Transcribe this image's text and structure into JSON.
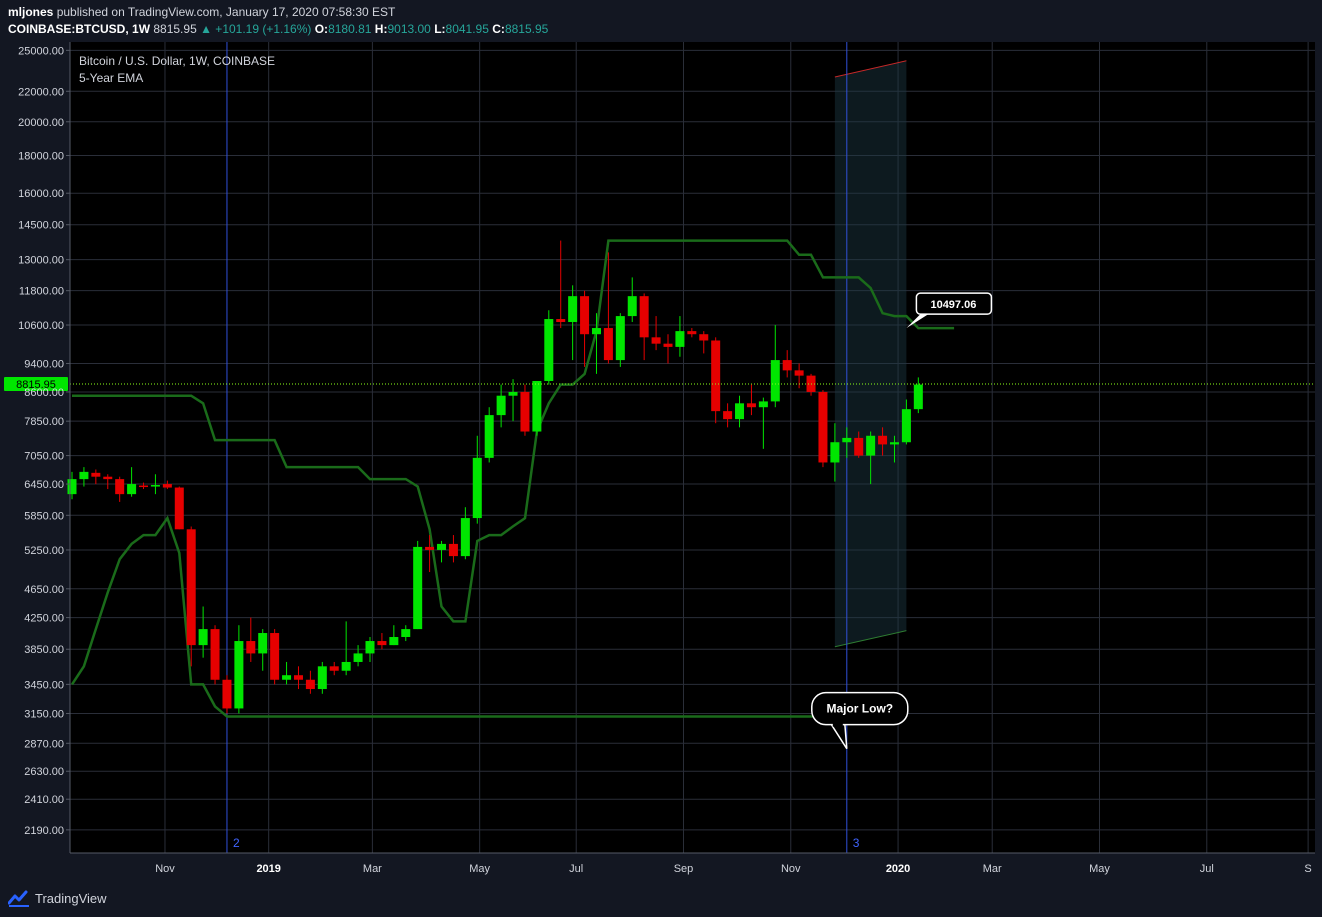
{
  "header": {
    "author": "mljones",
    "published_text": "published on TradingView.com, January 17, 2020 07:58:30 EST",
    "symbol": "COINBASE:BTCUSD,",
    "interval": "1W",
    "last": "8815.95",
    "change": "▲ +101.19 (+1.16%)",
    "o_label": "O:",
    "o_value": "8180.81",
    "h_label": "H:",
    "h_value": "9013.00",
    "l_label": "L:",
    "l_value": "8041.95",
    "c_label": "C:",
    "c_value": "8815.95"
  },
  "legend": {
    "title": "Bitcoin / U.S. Dollar, 1W, COINBASE",
    "indicator": "5-Year EMA"
  },
  "footer": {
    "brand": "TradingView",
    "logo_icon": "tradingview-logo-icon"
  },
  "colors": {
    "up": "#00e600",
    "down": "#e60000",
    "channel": "#1a6b1a",
    "vline": "#3150d8",
    "price_line": "#8cff1a",
    "grid": "#2a2e39",
    "background": "#000000"
  },
  "chart_data": {
    "type": "candlestick",
    "interval": "1W",
    "y_scale": "log",
    "ylim": [
      2050,
      25500
    ],
    "y_ticks": [
      "25000.00",
      "22000.00",
      "20000.00",
      "18000.00",
      "16000.00",
      "14500.00",
      "13000.00",
      "11800.00",
      "10600.00",
      "9400.00",
      "8600.00",
      "7850.00",
      "7050.00",
      "6450.00",
      "5850.00",
      "5250.00",
      "4650.00",
      "4250.00",
      "3850.00",
      "3450.00",
      "3150.00",
      "2870.00",
      "2630.00",
      "2410.00",
      "2190.00"
    ],
    "x_ticks": [
      "Nov",
      "2019",
      "Mar",
      "May",
      "Jul",
      "Sep",
      "Nov",
      "2020",
      "Mar",
      "May",
      "Jul",
      "S"
    ],
    "current_price_label": "8815.95",
    "candles": [
      {
        "o": 6250,
        "h": 6700,
        "l": 6150,
        "c": 6550
      },
      {
        "o": 6550,
        "h": 6800,
        "l": 6400,
        "c": 6700
      },
      {
        "o": 6680,
        "h": 6750,
        "l": 6450,
        "c": 6600
      },
      {
        "o": 6600,
        "h": 6650,
        "l": 6350,
        "c": 6550
      },
      {
        "o": 6550,
        "h": 6600,
        "l": 6100,
        "c": 6250
      },
      {
        "o": 6250,
        "h": 6800,
        "l": 6200,
        "c": 6450
      },
      {
        "o": 6420,
        "h": 6480,
        "l": 6350,
        "c": 6400
      },
      {
        "o": 6400,
        "h": 6650,
        "l": 6250,
        "c": 6430
      },
      {
        "o": 6450,
        "h": 6520,
        "l": 6350,
        "c": 6380
      },
      {
        "o": 6380,
        "h": 6400,
        "l": 5600,
        "c": 5600
      },
      {
        "o": 5600,
        "h": 5650,
        "l": 3650,
        "c": 3900
      },
      {
        "o": 3900,
        "h": 4400,
        "l": 3750,
        "c": 4100
      },
      {
        "o": 4100,
        "h": 4150,
        "l": 3450,
        "c": 3500
      },
      {
        "o": 3500,
        "h": 3550,
        "l": 3150,
        "c": 3200
      },
      {
        "o": 3200,
        "h": 4150,
        "l": 3150,
        "c": 3950
      },
      {
        "o": 3950,
        "h": 4250,
        "l": 3700,
        "c": 3800
      },
      {
        "o": 3800,
        "h": 4100,
        "l": 3600,
        "c": 4050
      },
      {
        "o": 4050,
        "h": 4100,
        "l": 3450,
        "c": 3500
      },
      {
        "o": 3500,
        "h": 3700,
        "l": 3450,
        "c": 3550
      },
      {
        "o": 3550,
        "h": 3650,
        "l": 3400,
        "c": 3500
      },
      {
        "o": 3500,
        "h": 3600,
        "l": 3350,
        "c": 3400
      },
      {
        "o": 3400,
        "h": 3700,
        "l": 3350,
        "c": 3650
      },
      {
        "o": 3650,
        "h": 3700,
        "l": 3550,
        "c": 3600
      },
      {
        "o": 3600,
        "h": 4200,
        "l": 3550,
        "c": 3700
      },
      {
        "o": 3700,
        "h": 3900,
        "l": 3650,
        "c": 3800
      },
      {
        "o": 3800,
        "h": 4000,
        "l": 3700,
        "c": 3950
      },
      {
        "o": 3950,
        "h": 4050,
        "l": 3850,
        "c": 3900
      },
      {
        "o": 3900,
        "h": 4150,
        "l": 3900,
        "c": 4000
      },
      {
        "o": 4000,
        "h": 4150,
        "l": 3950,
        "c": 4100
      },
      {
        "o": 4100,
        "h": 5400,
        "l": 4100,
        "c": 5300
      },
      {
        "o": 5300,
        "h": 5500,
        "l": 4900,
        "c": 5250
      },
      {
        "o": 5250,
        "h": 5400,
        "l": 5050,
        "c": 5350
      },
      {
        "o": 5350,
        "h": 5500,
        "l": 5050,
        "c": 5150
      },
      {
        "o": 5150,
        "h": 6000,
        "l": 5100,
        "c": 5800
      },
      {
        "o": 5800,
        "h": 7500,
        "l": 5700,
        "c": 7000
      },
      {
        "o": 7000,
        "h": 8200,
        "l": 6900,
        "c": 8000
      },
      {
        "o": 8000,
        "h": 8800,
        "l": 7700,
        "c": 8500
      },
      {
        "o": 8500,
        "h": 8950,
        "l": 7850,
        "c": 8600
      },
      {
        "o": 8600,
        "h": 8800,
        "l": 7500,
        "c": 7600
      },
      {
        "o": 7600,
        "h": 8900,
        "l": 7500,
        "c": 8900
      },
      {
        "o": 8900,
        "h": 11100,
        "l": 8800,
        "c": 10800
      },
      {
        "o": 10800,
        "h": 13800,
        "l": 10500,
        "c": 10700
      },
      {
        "o": 10700,
        "h": 12000,
        "l": 9500,
        "c": 11600
      },
      {
        "o": 11600,
        "h": 11800,
        "l": 9300,
        "c": 10300
      },
      {
        "o": 10300,
        "h": 11000,
        "l": 9100,
        "c": 10500
      },
      {
        "o": 10500,
        "h": 13300,
        "l": 9400,
        "c": 9500
      },
      {
        "o": 9500,
        "h": 11000,
        "l": 9300,
        "c": 10900
      },
      {
        "o": 10900,
        "h": 12300,
        "l": 10700,
        "c": 11600
      },
      {
        "o": 11600,
        "h": 11700,
        "l": 9500,
        "c": 10200
      },
      {
        "o": 10200,
        "h": 10900,
        "l": 9800,
        "c": 10000
      },
      {
        "o": 10000,
        "h": 10300,
        "l": 9400,
        "c": 9900
      },
      {
        "o": 9900,
        "h": 10900,
        "l": 9600,
        "c": 10400
      },
      {
        "o": 10400,
        "h": 10500,
        "l": 10200,
        "c": 10300
      },
      {
        "o": 10300,
        "h": 10400,
        "l": 9700,
        "c": 10100
      },
      {
        "o": 10100,
        "h": 10200,
        "l": 7800,
        "c": 8100
      },
      {
        "o": 8100,
        "h": 8300,
        "l": 7700,
        "c": 7900
      },
      {
        "o": 7900,
        "h": 8500,
        "l": 7700,
        "c": 8300
      },
      {
        "o": 8300,
        "h": 8800,
        "l": 8000,
        "c": 8200
      },
      {
        "o": 8200,
        "h": 8450,
        "l": 7200,
        "c": 8350
      },
      {
        "o": 8350,
        "h": 10600,
        "l": 8200,
        "c": 9500
      },
      {
        "o": 9500,
        "h": 9800,
        "l": 9000,
        "c": 9200
      },
      {
        "o": 9200,
        "h": 9400,
        "l": 8700,
        "c": 9050
      },
      {
        "o": 9050,
        "h": 9100,
        "l": 8500,
        "c": 8600
      },
      {
        "o": 8600,
        "h": 8650,
        "l": 6800,
        "c": 6900
      },
      {
        "o": 6900,
        "h": 7800,
        "l": 6500,
        "c": 7350
      },
      {
        "o": 7350,
        "h": 7700,
        "l": 7000,
        "c": 7450
      },
      {
        "o": 7450,
        "h": 7600,
        "l": 7000,
        "c": 7050
      },
      {
        "o": 7050,
        "h": 7600,
        "l": 6450,
        "c": 7500
      },
      {
        "o": 7500,
        "h": 7700,
        "l": 7050,
        "c": 7300
      },
      {
        "o": 7300,
        "h": 7500,
        "l": 6900,
        "c": 7350
      },
      {
        "o": 7350,
        "h": 8400,
        "l": 7300,
        "c": 8150
      },
      {
        "o": 8150,
        "h": 9000,
        "l": 8050,
        "c": 8800
      }
    ],
    "channel_upper": [
      [
        0,
        8500
      ],
      [
        10,
        8500
      ],
      [
        11,
        8300
      ],
      [
        12,
        7400
      ],
      [
        17,
        7400
      ],
      [
        18,
        6800
      ],
      [
        24,
        6800
      ],
      [
        25,
        6550
      ],
      [
        28,
        6550
      ],
      [
        29,
        6400
      ],
      [
        30,
        5600
      ],
      [
        31,
        4400
      ],
      [
        32,
        4200
      ],
      [
        33,
        4200
      ],
      [
        34,
        5400
      ],
      [
        35,
        5500
      ],
      [
        36,
        5500
      ],
      [
        37,
        5650
      ],
      [
        38,
        5800
      ],
      [
        39,
        7600
      ],
      [
        40,
        8300
      ],
      [
        41,
        8800
      ],
      [
        42,
        8800
      ],
      [
        43,
        9100
      ],
      [
        44,
        10400
      ],
      [
        45,
        13800
      ],
      [
        60,
        13800
      ],
      [
        61,
        13200
      ],
      [
        62,
        13200
      ],
      [
        63,
        12300
      ],
      [
        66,
        12300
      ],
      [
        67,
        11900
      ],
      [
        68,
        11000
      ],
      [
        69,
        10900
      ],
      [
        70,
        10900
      ],
      [
        71,
        10500
      ],
      [
        74,
        10500
      ]
    ],
    "channel_lower": [
      [
        0,
        3450
      ],
      [
        1,
        3650
      ],
      [
        2,
        4100
      ],
      [
        3,
        4600
      ],
      [
        4,
        5100
      ],
      [
        5,
        5350
      ],
      [
        6,
        5500
      ],
      [
        7,
        5500
      ],
      [
        8,
        5800
      ],
      [
        9,
        5200
      ],
      [
        10,
        3450
      ],
      [
        11,
        3450
      ],
      [
        12,
        3220
      ],
      [
        13,
        3120
      ],
      [
        64,
        3120
      ]
    ],
    "projection_upper": [
      [
        64,
        23000
      ],
      [
        70,
        24200
      ]
    ],
    "projection_lower": [
      [
        64,
        3880
      ],
      [
        70,
        4080
      ]
    ],
    "vertical_markers": [
      {
        "index": 13,
        "label": "2"
      },
      {
        "index": 65,
        "label": "3"
      }
    ],
    "annotations": [
      {
        "text": "10497.06",
        "at_index": 70,
        "price": 10497.06
      },
      {
        "text": "Major Low?",
        "at_index": 65,
        "price": 2930
      }
    ]
  }
}
